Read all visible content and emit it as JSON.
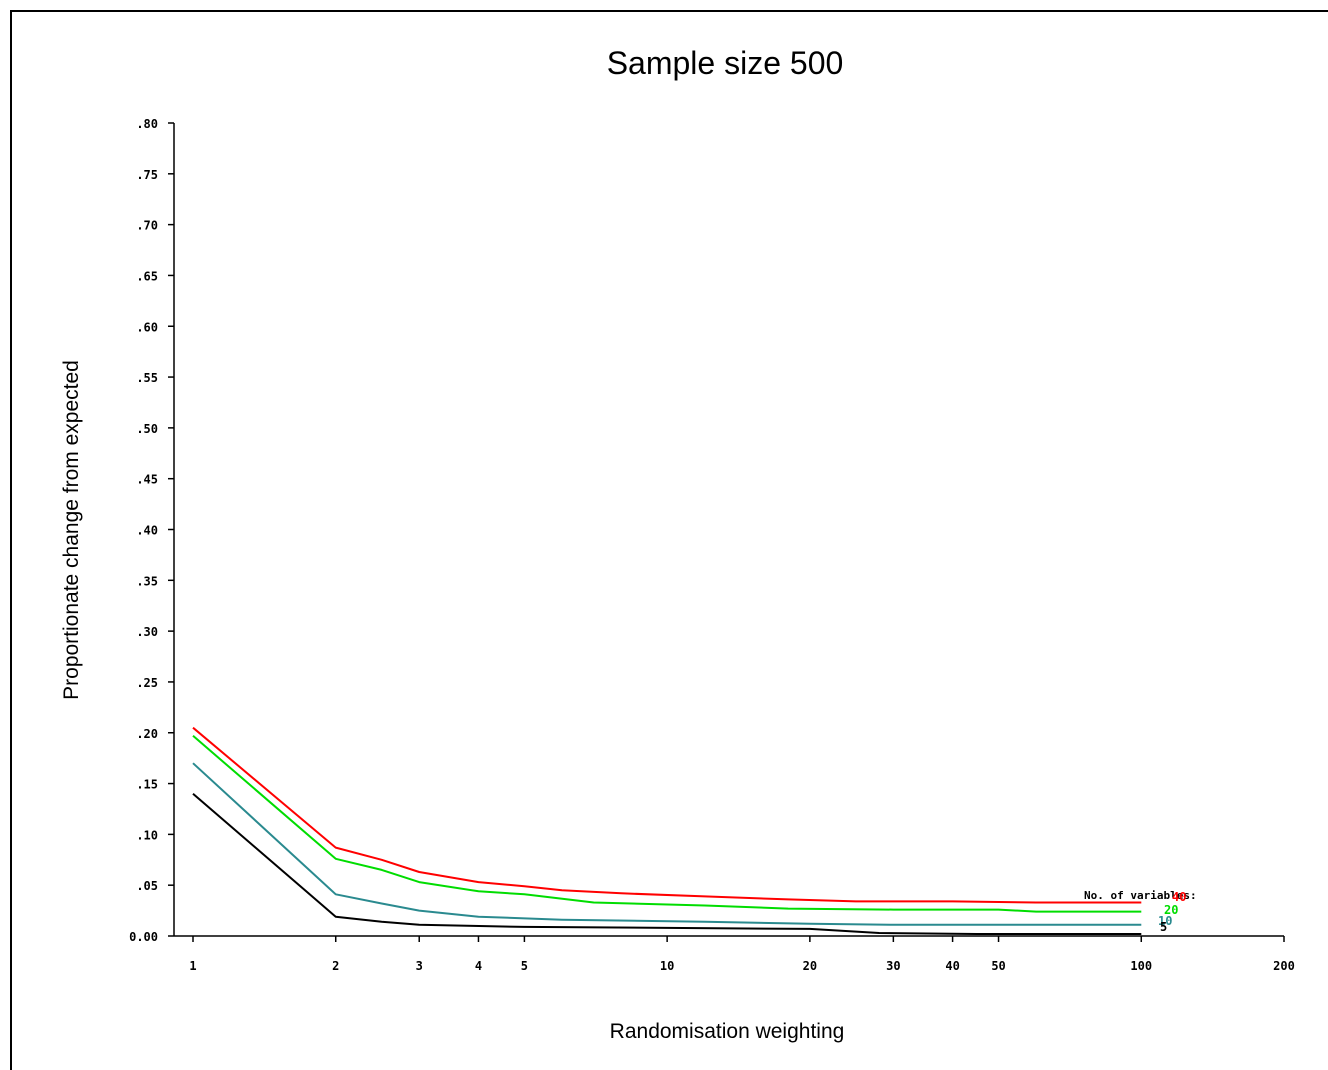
{
  "chart_data": {
    "type": "line",
    "title": "Sample size 500",
    "xlabel": "Randomisation weighting",
    "ylabel": "Proportionate change from expected",
    "x_scale": "log",
    "xlim": [
      1,
      200
    ],
    "ylim": [
      0,
      0.8
    ],
    "x_ticks": [
      {
        "value": 1,
        "label": "1"
      },
      {
        "value": 2,
        "label": "2"
      },
      {
        "value": 3,
        "label": "3"
      },
      {
        "value": 4,
        "label": "4"
      },
      {
        "value": 5,
        "label": "5"
      },
      {
        "value": 10,
        "label": "10"
      },
      {
        "value": 20,
        "label": "20"
      },
      {
        "value": 30,
        "label": "30"
      },
      {
        "value": 40,
        "label": "40"
      },
      {
        "value": 50,
        "label": "50"
      },
      {
        "value": 100,
        "label": "100"
      },
      {
        "value": 200,
        "label": "200"
      }
    ],
    "y_ticks": [
      {
        "value": 0.0,
        "label": "0.00"
      },
      {
        "value": 0.05,
        "label": ".05"
      },
      {
        "value": 0.1,
        "label": ".10"
      },
      {
        "value": 0.15,
        "label": ".15"
      },
      {
        "value": 0.2,
        "label": ".20"
      },
      {
        "value": 0.25,
        "label": ".25"
      },
      {
        "value": 0.3,
        "label": ".30"
      },
      {
        "value": 0.35,
        "label": ".35"
      },
      {
        "value": 0.4,
        "label": ".40"
      },
      {
        "value": 0.45,
        "label": ".45"
      },
      {
        "value": 0.5,
        "label": ".50"
      },
      {
        "value": 0.55,
        "label": ".55"
      },
      {
        "value": 0.6,
        "label": ".60"
      },
      {
        "value": 0.65,
        "label": ".65"
      },
      {
        "value": 0.7,
        "label": ".70"
      },
      {
        "value": 0.75,
        "label": ".75"
      },
      {
        "value": 0.8,
        "label": ".80"
      }
    ],
    "grid": false,
    "legend": {
      "title": "No. of variables:",
      "placement": "bottom-right"
    },
    "series": [
      {
        "name": "40",
        "color": "#ff0000",
        "points": [
          [
            1,
            0.205
          ],
          [
            2,
            0.087
          ],
          [
            2.5,
            0.075
          ],
          [
            3,
            0.063
          ],
          [
            4,
            0.053
          ],
          [
            5,
            0.049
          ],
          [
            6,
            0.045
          ],
          [
            8,
            0.042
          ],
          [
            12,
            0.039
          ],
          [
            18,
            0.036
          ],
          [
            25,
            0.034
          ],
          [
            40,
            0.034
          ],
          [
            60,
            0.033
          ],
          [
            100,
            0.033
          ]
        ]
      },
      {
        "name": "20",
        "color": "#00dd00",
        "points": [
          [
            1,
            0.197
          ],
          [
            2,
            0.076
          ],
          [
            2.5,
            0.065
          ],
          [
            3,
            0.053
          ],
          [
            4,
            0.044
          ],
          [
            5,
            0.041
          ],
          [
            7,
            0.033
          ],
          [
            12,
            0.03
          ],
          [
            18,
            0.027
          ],
          [
            30,
            0.026
          ],
          [
            50,
            0.026
          ],
          [
            60,
            0.024
          ],
          [
            100,
            0.024
          ]
        ]
      },
      {
        "name": "10",
        "color": "#2a8a8f",
        "points": [
          [
            1,
            0.17
          ],
          [
            2,
            0.041
          ],
          [
            2.5,
            0.032
          ],
          [
            3,
            0.025
          ],
          [
            4,
            0.019
          ],
          [
            6,
            0.016
          ],
          [
            12,
            0.014
          ],
          [
            20,
            0.012
          ],
          [
            30,
            0.011
          ],
          [
            60,
            0.011
          ],
          [
            100,
            0.011
          ]
        ]
      },
      {
        "name": "5",
        "color": "#000000",
        "points": [
          [
            1,
            0.14
          ],
          [
            2,
            0.019
          ],
          [
            2.5,
            0.014
          ],
          [
            3,
            0.011
          ],
          [
            5,
            0.009
          ],
          [
            10,
            0.008
          ],
          [
            20,
            0.007
          ],
          [
            28,
            0.003
          ],
          [
            45,
            0.002
          ],
          [
            100,
            0.002
          ]
        ]
      }
    ]
  }
}
